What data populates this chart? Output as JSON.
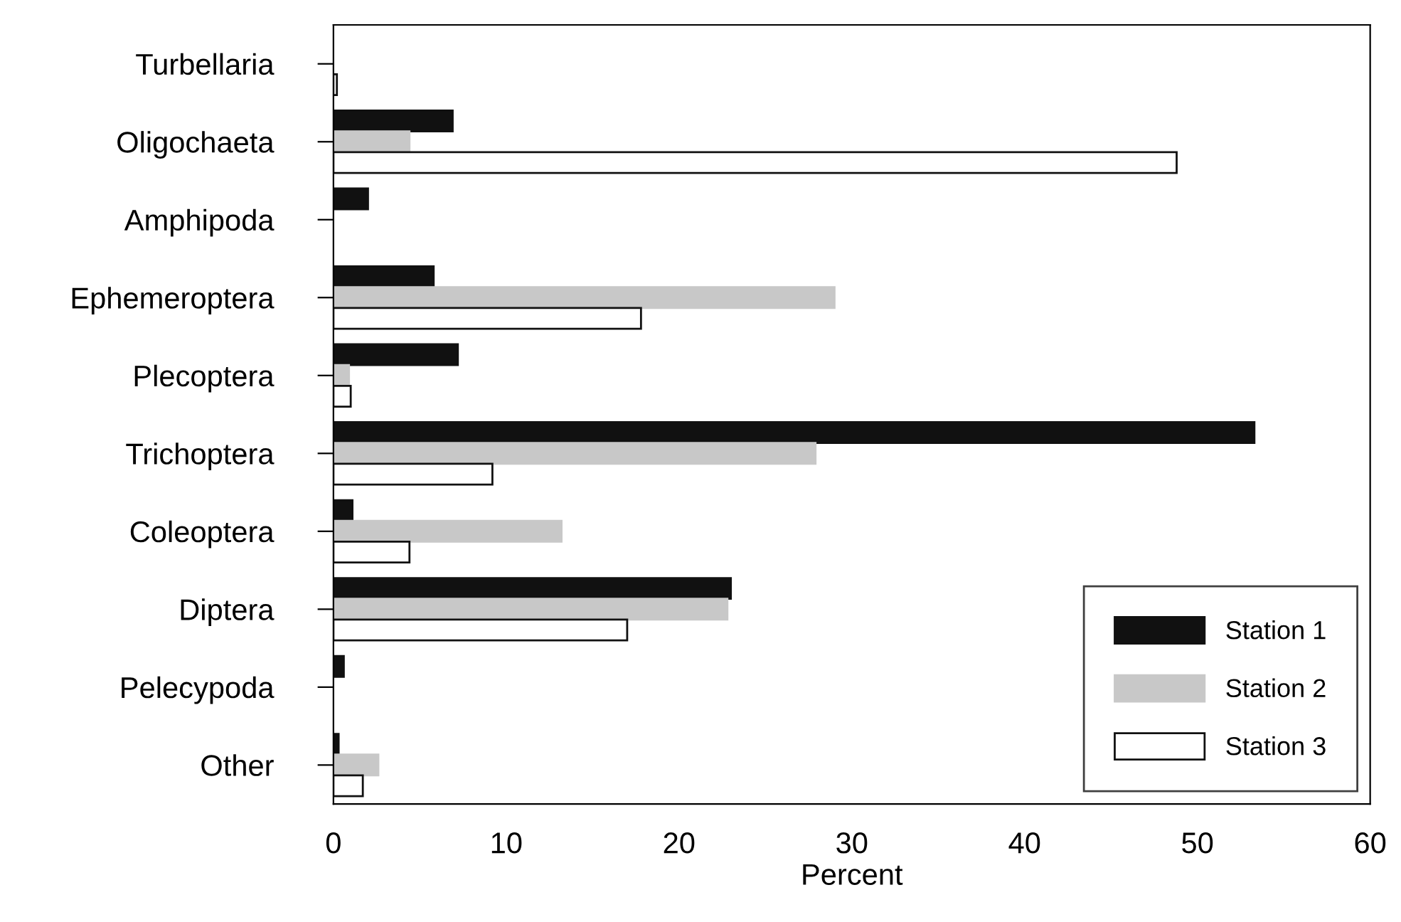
{
  "chart_data": {
    "type": "bar",
    "orientation": "horizontal",
    "xlabel": "Percent",
    "categories": [
      "Turbellaria",
      "Oligochaeta",
      "Amphipoda",
      "Ephemeroptera",
      "Plecoptera",
      "Trichoptera",
      "Coleoptera",
      "Diptera",
      "Pelecypoda",
      "Other"
    ],
    "series": [
      {
        "name": "Station 1",
        "color": "#111111",
        "values": [
          null,
          6.9,
          2.0,
          5.8,
          7.2,
          53.3,
          1.1,
          23.0,
          0.6,
          0.3
        ]
      },
      {
        "name": "Station 2",
        "color": "#c8c8c8",
        "values": [
          null,
          4.4,
          null,
          29.0,
          0.9,
          27.9,
          13.2,
          22.8,
          null,
          2.6
        ]
      },
      {
        "name": "Station 3",
        "color": "#ffffff",
        "values": [
          0.2,
          48.8,
          null,
          17.8,
          1.0,
          9.2,
          4.4,
          17.0,
          null,
          1.7
        ]
      }
    ],
    "xlim": [
      0,
      60
    ],
    "xticks": [
      0,
      10,
      20,
      30,
      40,
      50,
      60
    ],
    "grid": false,
    "legend": "bottom right"
  }
}
